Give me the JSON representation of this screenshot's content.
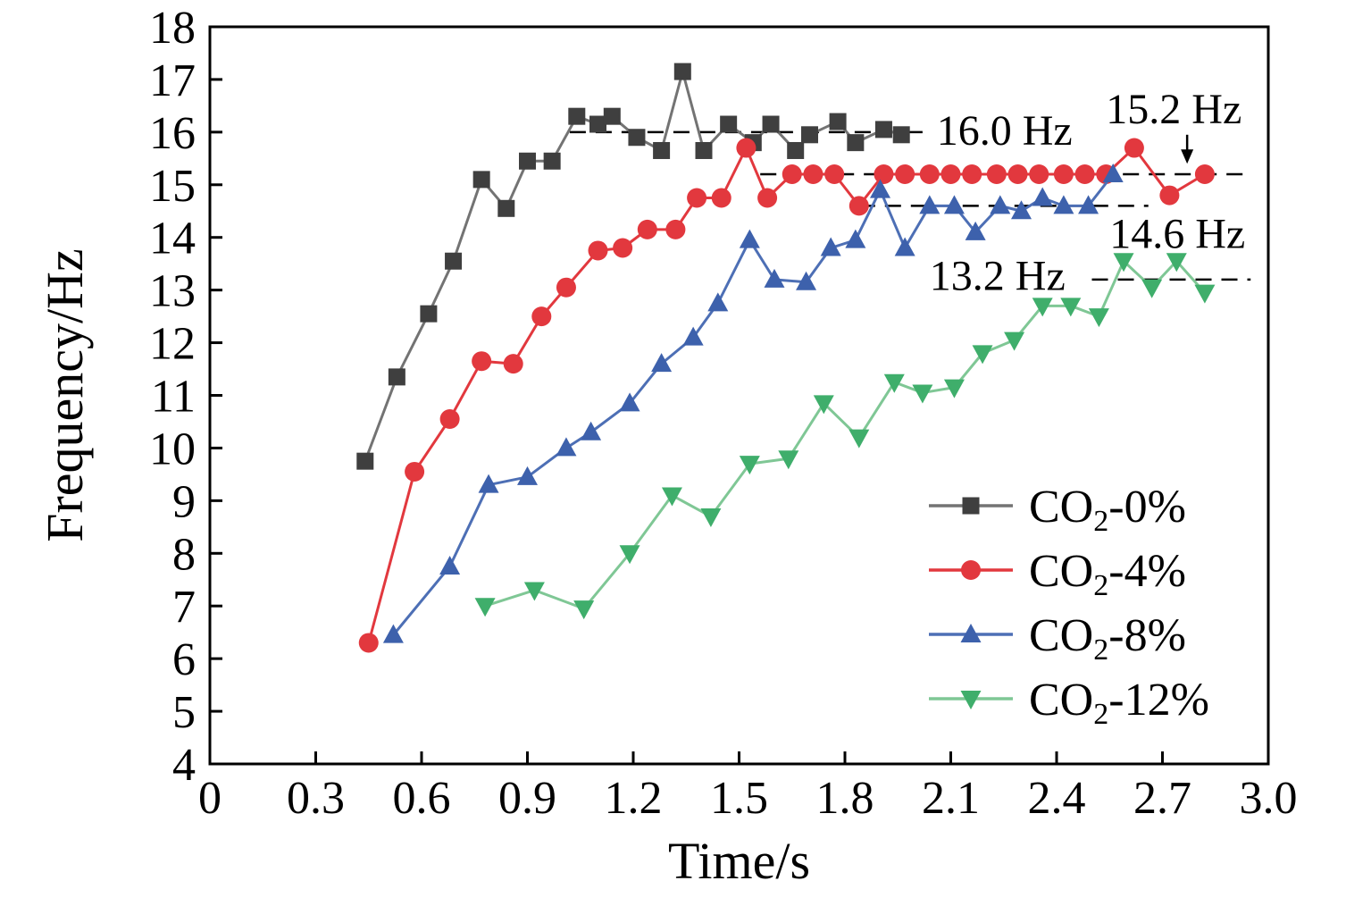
{
  "figure": {
    "background": "#ffffff"
  },
  "chart_data": {
    "type": "line",
    "title": "",
    "xlabel": "Time/s",
    "ylabel": "Frequency/Hz",
    "xlim": [
      0,
      3.0
    ],
    "ylim": [
      4,
      18
    ],
    "xtick_values": [
      0,
      0.3,
      0.6,
      0.9,
      1.2,
      1.5,
      1.8,
      2.1,
      2.4,
      2.7,
      3.0
    ],
    "xtick_labels": [
      "0",
      "0.3",
      "0.6",
      "0.9",
      "1.2",
      "1.5",
      "1.8",
      "2.1",
      "2.4",
      "2.7",
      "3.0"
    ],
    "ytick_values": [
      4,
      5,
      6,
      7,
      8,
      9,
      10,
      11,
      12,
      13,
      14,
      15,
      16,
      17,
      18
    ],
    "ytick_labels": [
      "4",
      "5",
      "6",
      "7",
      "8",
      "9",
      "10",
      "11",
      "12",
      "13",
      "14",
      "15",
      "16",
      "17",
      "18"
    ],
    "grid": false,
    "legend_position": "lower-right-inside",
    "series": [
      {
        "key": "co2-0",
        "name": "CO₂-0%",
        "marker": "square",
        "color": "#3f3f3f",
        "line_color": "#737373",
        "points": [
          [
            0.44,
            9.75
          ],
          [
            0.53,
            11.35
          ],
          [
            0.62,
            12.55
          ],
          [
            0.69,
            13.55
          ],
          [
            0.77,
            15.1
          ],
          [
            0.84,
            14.55
          ],
          [
            0.9,
            15.45
          ],
          [
            0.97,
            15.45
          ],
          [
            1.04,
            16.3
          ],
          [
            1.1,
            16.15
          ],
          [
            1.14,
            16.3
          ],
          [
            1.21,
            15.9
          ],
          [
            1.28,
            15.65
          ],
          [
            1.34,
            17.15
          ],
          [
            1.4,
            15.65
          ],
          [
            1.47,
            16.15
          ],
          [
            1.54,
            15.8
          ],
          [
            1.59,
            16.15
          ],
          [
            1.66,
            15.65
          ],
          [
            1.7,
            15.95
          ],
          [
            1.78,
            16.2
          ],
          [
            1.83,
            15.8
          ],
          [
            1.91,
            16.05
          ],
          [
            1.96,
            15.95
          ]
        ]
      },
      {
        "key": "co2-4",
        "name": "CO₂-4%",
        "marker": "circle",
        "color": "#e2383e",
        "line_color": "#e2383e",
        "points": [
          [
            0.45,
            6.3
          ],
          [
            0.58,
            9.55
          ],
          [
            0.68,
            10.55
          ],
          [
            0.77,
            11.65
          ],
          [
            0.86,
            11.6
          ],
          [
            0.94,
            12.5
          ],
          [
            1.01,
            13.05
          ],
          [
            1.1,
            13.75
          ],
          [
            1.17,
            13.8
          ],
          [
            1.24,
            14.15
          ],
          [
            1.32,
            14.15
          ],
          [
            1.38,
            14.75
          ],
          [
            1.45,
            14.75
          ],
          [
            1.52,
            15.7
          ],
          [
            1.58,
            14.75
          ],
          [
            1.65,
            15.2
          ],
          [
            1.71,
            15.2
          ],
          [
            1.77,
            15.2
          ],
          [
            1.84,
            14.6
          ],
          [
            1.91,
            15.2
          ],
          [
            1.97,
            15.2
          ],
          [
            2.04,
            15.2
          ],
          [
            2.1,
            15.2
          ],
          [
            2.16,
            15.2
          ],
          [
            2.23,
            15.2
          ],
          [
            2.29,
            15.2
          ],
          [
            2.35,
            15.2
          ],
          [
            2.42,
            15.2
          ],
          [
            2.48,
            15.2
          ],
          [
            2.54,
            15.2
          ],
          [
            2.62,
            15.7
          ],
          [
            2.72,
            14.8
          ],
          [
            2.82,
            15.2
          ]
        ]
      },
      {
        "key": "co2-8",
        "name": "CO₂-8%",
        "marker": "triangle-up",
        "color": "#3d61ac",
        "line_color": "#4d6fb5",
        "points": [
          [
            0.52,
            6.45
          ],
          [
            0.68,
            7.75
          ],
          [
            0.79,
            9.3
          ],
          [
            0.9,
            9.45
          ],
          [
            1.01,
            10.0
          ],
          [
            1.08,
            10.3
          ],
          [
            1.19,
            10.85
          ],
          [
            1.28,
            11.6
          ],
          [
            1.37,
            12.1
          ],
          [
            1.44,
            12.75
          ],
          [
            1.53,
            13.95
          ],
          [
            1.6,
            13.2
          ],
          [
            1.69,
            13.15
          ],
          [
            1.76,
            13.8
          ],
          [
            1.83,
            13.95
          ],
          [
            1.9,
            14.9
          ],
          [
            1.97,
            13.8
          ],
          [
            2.04,
            14.6
          ],
          [
            2.11,
            14.6
          ],
          [
            2.17,
            14.1
          ],
          [
            2.24,
            14.6
          ],
          [
            2.3,
            14.5
          ],
          [
            2.36,
            14.75
          ],
          [
            2.42,
            14.6
          ],
          [
            2.49,
            14.6
          ],
          [
            2.56,
            15.2
          ]
        ]
      },
      {
        "key": "co2-12",
        "name": "CO₂-12%",
        "marker": "triangle-down",
        "color": "#3fae6b",
        "line_color": "#7fc795",
        "points": [
          [
            0.78,
            7.0
          ],
          [
            0.92,
            7.3
          ],
          [
            1.06,
            6.95
          ],
          [
            1.19,
            8.0
          ],
          [
            1.31,
            9.1
          ],
          [
            1.42,
            8.7
          ],
          [
            1.53,
            9.7
          ],
          [
            1.64,
            9.8
          ],
          [
            1.74,
            10.85
          ],
          [
            1.84,
            10.2
          ],
          [
            1.94,
            11.25
          ],
          [
            2.02,
            11.05
          ],
          [
            2.11,
            11.15
          ],
          [
            2.19,
            11.8
          ],
          [
            2.28,
            12.05
          ],
          [
            2.36,
            12.7
          ],
          [
            2.44,
            12.7
          ],
          [
            2.52,
            12.5
          ],
          [
            2.59,
            13.55
          ],
          [
            2.67,
            13.05
          ],
          [
            2.74,
            13.55
          ],
          [
            2.82,
            12.95
          ]
        ]
      }
    ],
    "reference_lines": [
      {
        "label": "16.0 Hz",
        "y": 16.0,
        "x_start": 1.02,
        "x_end": 2.04
      },
      {
        "label": "15.2 Hz",
        "y": 15.2,
        "x_start": 1.56,
        "x_end": 2.95
      },
      {
        "label": "14.6 Hz",
        "y": 14.6,
        "x_start": 1.84,
        "x_end": 2.66
      },
      {
        "label": "13.2 Hz",
        "y": 13.2,
        "x_start": 2.5,
        "x_end": 2.95
      }
    ],
    "annotations": [
      {
        "text": "16.0 Hz",
        "x": 2.06,
        "y": 15.76
      },
      {
        "text": "15.2 Hz",
        "x": 2.54,
        "y": 16.17,
        "arrow": {
          "x": 2.77,
          "y_from": 15.95,
          "y_to": 15.4
        }
      },
      {
        "text": "14.6 Hz",
        "x": 2.55,
        "y": 13.8
      },
      {
        "text": "13.2 Hz",
        "x": 2.04,
        "y": 13.0
      }
    ]
  }
}
